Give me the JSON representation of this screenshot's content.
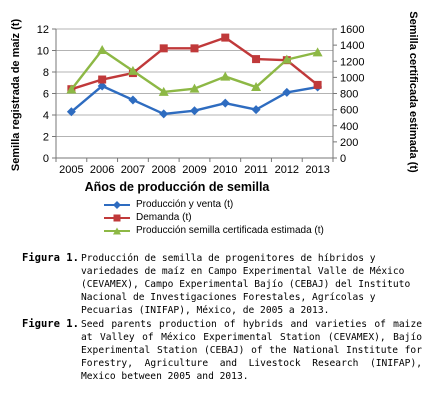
{
  "chart_data": {
    "type": "line",
    "x": [
      "2005",
      "2006",
      "2007",
      "2008",
      "2009",
      "2010",
      "2011",
      "2012",
      "2013"
    ],
    "xlabel": "Años de producción de semilla",
    "ylabel_left": "Semilla registrada de maíz (t)",
    "ylabel_right": "Semilla certificada estimada (t)",
    "ylim_left": [
      0,
      12
    ],
    "yticks_left": [
      "0",
      "2",
      "4",
      "6",
      "8",
      "10",
      "12"
    ],
    "ylim_right": [
      0,
      1600
    ],
    "yticks_right": [
      "0",
      "200",
      "400",
      "600",
      "800",
      "1000",
      "1200",
      "1400",
      "1600"
    ],
    "grid": "horizontal",
    "legend_position": "bottom",
    "series": [
      {
        "name": "Producción y venta (t)",
        "axis": "left",
        "color": "#2e6cc0",
        "marker": "diamond",
        "values": [
          4.3,
          6.7,
          5.4,
          4.1,
          4.4,
          5.1,
          4.5,
          6.1,
          6.6
        ]
      },
      {
        "name": "Demanda (t)",
        "axis": "left",
        "color": "#c0393a",
        "marker": "square",
        "values": [
          6.4,
          7.3,
          7.9,
          10.2,
          10.2,
          11.2,
          9.2,
          9.1,
          6.8
        ]
      },
      {
        "name": "Producción semilla certificada estimada (t)",
        "axis": "right",
        "color": "#8db845",
        "marker": "triangle",
        "values": [
          850,
          1340,
          1080,
          820,
          860,
          1010,
          880,
          1220,
          1310
        ]
      }
    ]
  },
  "captions": [
    {
      "label": "Figura 1.",
      "text": "Producción de semilla de progenitores de híbridos y variedades de maíz en Campo Experimental Valle de México (CEVAMEX), Campo Experimental Bajío (CEBAJ) del Instituto Nacional de Investigaciones Forestales, Agrícolas y Pecuarias (INIFAP), México, de 2005 a 2013."
    },
    {
      "label": "Figure 1.",
      "text": "Seed parents production of hybrids and varieties of maize at Valley of México Experimental Station (CEVAMEX), Bajío Experimental Station (CEBAJ) of the National Institute for Forestry, Agriculture and Livestock Research (INIFAP), Mexico between 2005 and 2013."
    }
  ]
}
